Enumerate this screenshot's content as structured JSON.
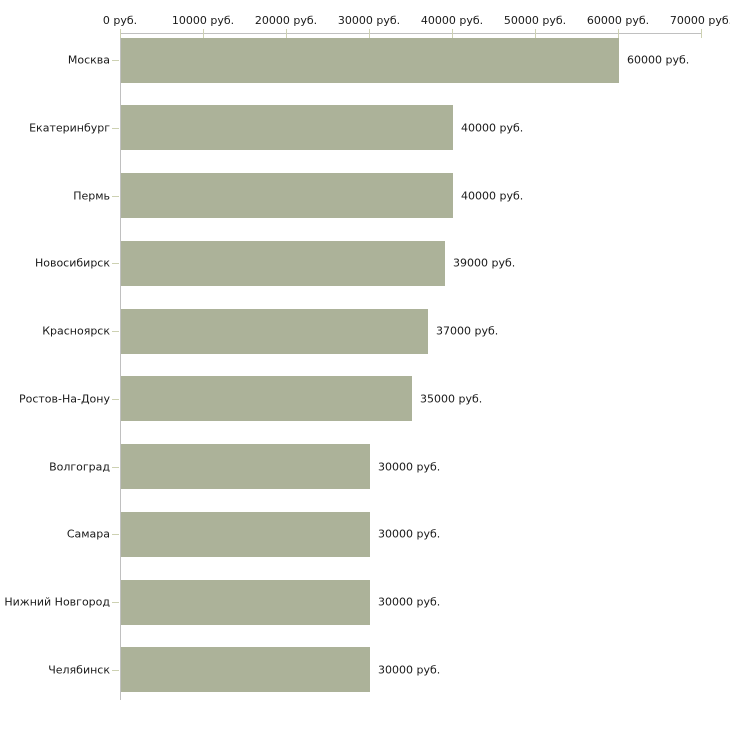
{
  "chart_data": {
    "type": "bar",
    "orientation": "horizontal",
    "title": "",
    "xlabel": "",
    "ylabel": "",
    "xlim": [
      0,
      70000
    ],
    "grid": false,
    "legend": null,
    "categories": [
      "Москва",
      "Екатеринбург",
      "Пермь",
      "Новосибирск",
      "Красноярск",
      "Ростов-На-Дону",
      "Волгоград",
      "Самара",
      "Нижний Новгород",
      "Челябинск"
    ],
    "values": [
      60000,
      40000,
      40000,
      39000,
      37000,
      35000,
      30000,
      30000,
      30000,
      30000
    ],
    "value_labels": [
      "60000 руб.",
      "40000 руб.",
      "40000 руб.",
      "39000 руб.",
      "37000 руб.",
      "35000 руб.",
      "30000 руб.",
      "30000 руб.",
      "30000 руб.",
      "30000 руб."
    ],
    "x_ticks": [
      0,
      10000,
      20000,
      30000,
      40000,
      50000,
      60000,
      70000
    ],
    "x_tick_labels": [
      "0 руб.",
      "10000 руб.",
      "20000 руб.",
      "30000 руб.",
      "40000 руб.",
      "50000 руб.",
      "60000 руб.",
      "70000 руб."
    ],
    "colors": {
      "bar": "#acb299",
      "tick": "#cdd1b2",
      "axis_line": "#c0c0c0",
      "text": "#1a1a1a",
      "background": "#ffffff"
    }
  }
}
